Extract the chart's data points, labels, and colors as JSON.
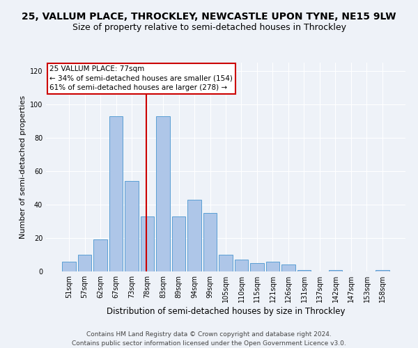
{
  "title": "25, VALLUM PLACE, THROCKLEY, NEWCASTLE UPON TYNE, NE15 9LW",
  "subtitle": "Size of property relative to semi-detached houses in Throckley",
  "xlabel": "Distribution of semi-detached houses by size in Throckley",
  "ylabel": "Number of semi-detached properties",
  "footer": "Contains HM Land Registry data © Crown copyright and database right 2024.\nContains public sector information licensed under the Open Government Licence v3.0.",
  "categories": [
    "51sqm",
    "57sqm",
    "62sqm",
    "67sqm",
    "73sqm",
    "78sqm",
    "83sqm",
    "89sqm",
    "94sqm",
    "99sqm",
    "105sqm",
    "110sqm",
    "115sqm",
    "121sqm",
    "126sqm",
    "131sqm",
    "137sqm",
    "142sqm",
    "147sqm",
    "153sqm",
    "158sqm"
  ],
  "values": [
    6,
    10,
    19,
    93,
    54,
    33,
    93,
    33,
    43,
    35,
    10,
    7,
    5,
    6,
    4,
    1,
    0,
    1,
    0,
    0,
    1
  ],
  "bar_color": "#aec6e8",
  "bar_edge_color": "#5a9fd4",
  "annotation_text": "25 VALLUM PLACE: 77sqm\n← 34% of semi-detached houses are smaller (154)\n61% of semi-detached houses are larger (278) →",
  "annotation_box_color": "#ffffff",
  "annotation_box_edge_color": "#cc0000",
  "vline_color": "#cc0000",
  "ylim": [
    0,
    125
  ],
  "yticks": [
    0,
    20,
    40,
    60,
    80,
    100,
    120
  ],
  "background_color": "#eef2f8",
  "grid_color": "#ffffff",
  "title_fontsize": 10,
  "subtitle_fontsize": 9,
  "xlabel_fontsize": 8.5,
  "ylabel_fontsize": 8,
  "tick_fontsize": 7,
  "footer_fontsize": 6.5,
  "annotation_fontsize": 7.5
}
